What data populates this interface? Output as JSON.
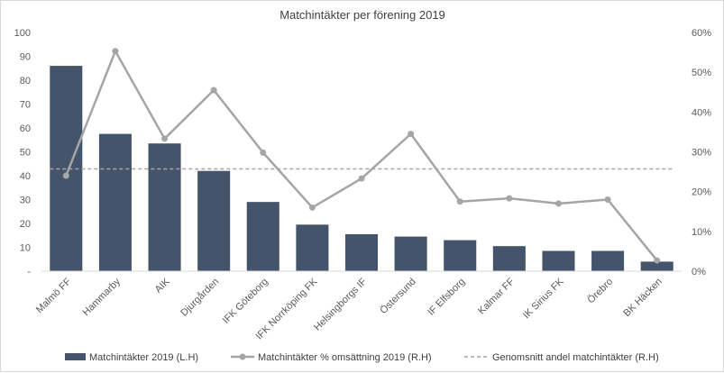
{
  "chart_data": {
    "type": "bar",
    "title": "Matchintäkter per förening 2019",
    "categories": [
      "Malmö FF",
      "Hammarby",
      "AIK",
      "Djurgården",
      "IFK Göteborg",
      "IFK Norrköping FK",
      "Helsingborgs IF",
      "Östersund",
      "IF Elfsborg",
      "Kalmar FF",
      "IK Sirius FK",
      "Örebro",
      "BK Häcken"
    ],
    "series": [
      {
        "name": "Matchintäkter 2019 (L.H)",
        "type": "bar",
        "axis": "left",
        "color": "#44546a",
        "values": [
          86,
          57.5,
          53.5,
          42,
          29,
          19.5,
          15.5,
          14.5,
          13,
          10.5,
          8.5,
          8.5,
          4
        ]
      },
      {
        "name": "Matchintäkter % omsättning 2019 (R.H)",
        "type": "line",
        "axis": "right",
        "color": "#a5a5a5",
        "marker": "circle",
        "values": [
          0.24,
          0.553,
          0.333,
          0.455,
          0.298,
          0.16,
          0.233,
          0.345,
          0.175,
          0.183,
          0.17,
          0.18,
          0.027
        ]
      },
      {
        "name": "Genomsnitt andel matchintäkter (R.H)",
        "type": "line",
        "axis": "right",
        "color": "#a5a5a5",
        "dash": "dashed",
        "values": [
          0.257,
          0.257,
          0.257,
          0.257,
          0.257,
          0.257,
          0.257,
          0.257,
          0.257,
          0.257,
          0.257,
          0.257,
          0.257
        ]
      }
    ],
    "left_axis": {
      "min": 0,
      "max": 100,
      "ticks": [
        0,
        10,
        20,
        30,
        40,
        50,
        60,
        70,
        80,
        90,
        100
      ],
      "tick_labels": [
        "-",
        "10",
        "20",
        "30",
        "40",
        "50",
        "60",
        "70",
        "80",
        "90",
        "100"
      ]
    },
    "right_axis": {
      "min": 0,
      "max": 0.6,
      "ticks": [
        0,
        0.1,
        0.2,
        0.3,
        0.4,
        0.5,
        0.6
      ],
      "tick_labels": [
        "0%",
        "10%",
        "20%",
        "30%",
        "40%",
        "50%",
        "60%"
      ]
    },
    "xlabel": "",
    "ylabel": "",
    "grid": false,
    "legend_position": "bottom"
  }
}
